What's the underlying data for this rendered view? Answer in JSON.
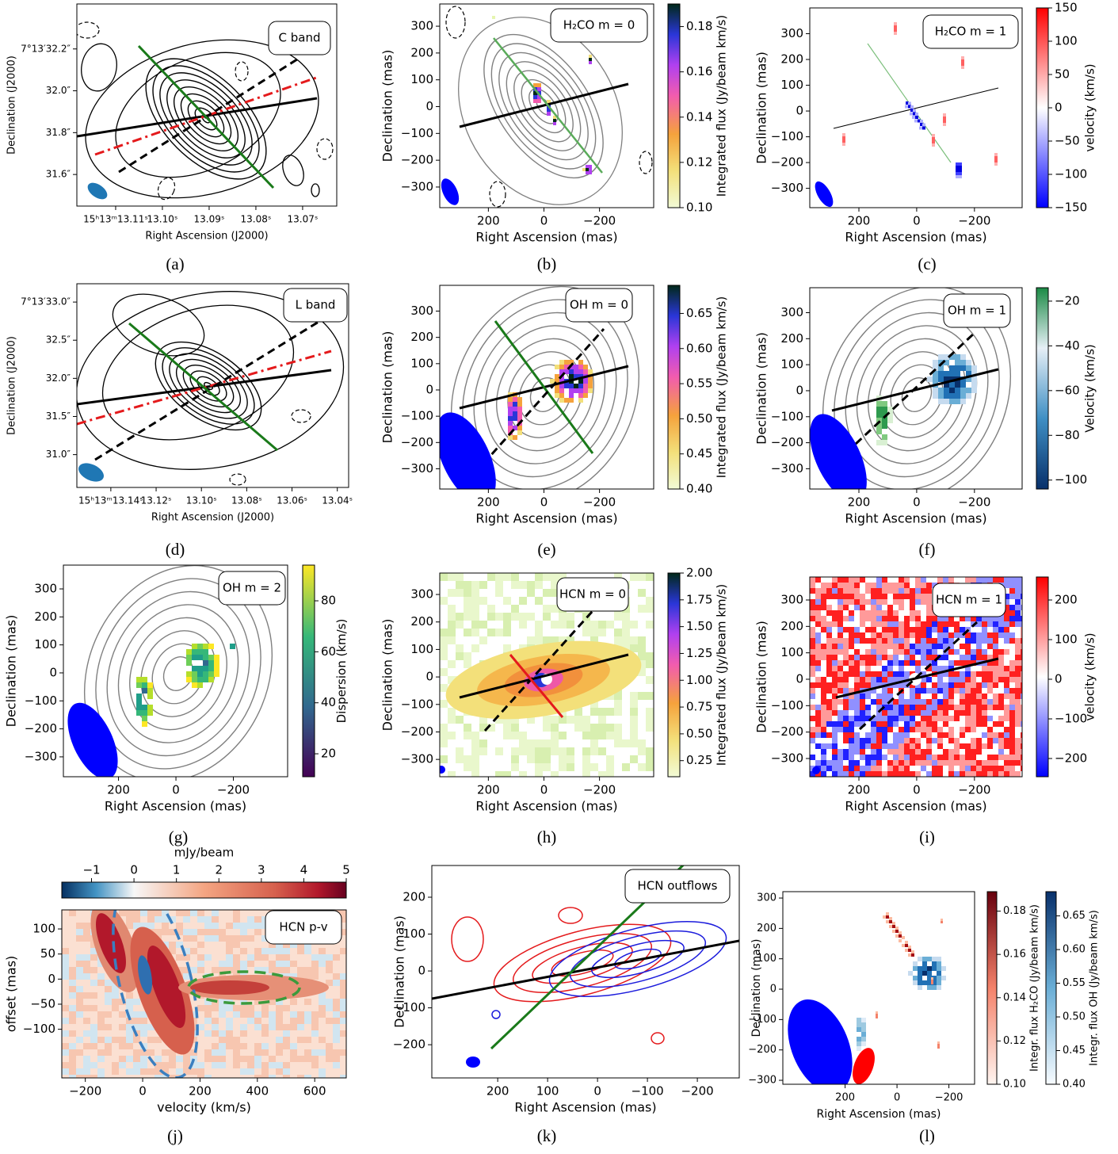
{
  "chart_data": [
    {
      "type": "map",
      "caption": "(a)",
      "annotation": "C band",
      "xlabel": "Right Ascension (J2000)",
      "ylabel": "Declination (J2000)",
      "xlim": [
        13.1183,
        13.0627
      ],
      "ylim": [
        31.449,
        32.415
      ],
      "xticks": [
        {
          "value": 13.11,
          "label": "15ʰ13ᵐ13.11ˢ"
        },
        {
          "value": 13.1,
          "label": "13.10ˢ"
        },
        {
          "value": 13.09,
          "label": "13.09ˢ"
        },
        {
          "value": 13.08,
          "label": "13.08ˢ"
        },
        {
          "value": 13.07,
          "label": "13.07ˢ"
        }
      ],
      "yticks": [
        {
          "value": 31.6,
          "label": "31.6″"
        },
        {
          "value": 31.8,
          "label": "31.8″"
        },
        {
          "value": 32.0,
          "label": "32.0″"
        },
        {
          "value": 32.2,
          "label": "7°13′32.2″"
        }
      ]
    },
    {
      "type": "map",
      "caption": "(b)",
      "annotation": "H₂CO m = 0",
      "xlabel": "Right Ascension (mas)",
      "ylabel": "Declination (mas)",
      "xlim": [
        375,
        -395
      ],
      "ylim": [
        -377,
        383
      ],
      "xticks": [
        200,
        0,
        {
          "value": -200,
          "label": "−200"
        }
      ],
      "yticks": [
        {
          "value": -300,
          "label": "−300"
        },
        {
          "value": -200,
          "label": "−200"
        },
        {
          "value": -100,
          "label": "−100"
        },
        0,
        100,
        200,
        300
      ],
      "colorbars": [
        {
          "label": "Integrated flux (Jy/beam km/s)",
          "cmap": "flux",
          "lim": [
            0.1,
            0.19
          ],
          "ticks": [
            {
              "value": 0.1,
              "label": "0.10"
            },
            0.12,
            0.14,
            0.16,
            0.18
          ]
        }
      ]
    },
    {
      "type": "map",
      "caption": "(c)",
      "annotation": "H₂CO m = 1",
      "xlabel": "Right Ascension (mas)",
      "ylabel": "Declination (mas)",
      "xlim": [
        370,
        -365
      ],
      "ylim": [
        -375,
        400
      ],
      "xticks": [
        200,
        0,
        {
          "value": -200,
          "label": "−200"
        }
      ],
      "yticks": [
        {
          "value": -300,
          "label": "−300"
        },
        {
          "value": -200,
          "label": "−200"
        },
        {
          "value": -100,
          "label": "−100"
        },
        0,
        100,
        200,
        300
      ],
      "colorbars": [
        {
          "label": "velocity (km/s)",
          "cmap": "bwr",
          "lim": [
            -150,
            150
          ],
          "ticks": [
            {
              "value": -150,
              "label": "−150"
            },
            {
              "value": -100,
              "label": "−100"
            },
            {
              "value": -50,
              "label": "−50"
            },
            0,
            50,
            100,
            150
          ]
        }
      ]
    },
    {
      "type": "map",
      "caption": "(d)",
      "annotation": "L band",
      "xlabel": "Right Ascension (J2000)",
      "ylabel": "Declination (J2000)",
      "xlim": [
        13.155,
        13.035
      ],
      "ylim": [
        30.57,
        33.24
      ],
      "xticks": [
        {
          "value": 13.14,
          "label": "15ʰ13ᵐ13.14ˢ"
        },
        {
          "value": 13.12,
          "label": "13.12ˢ"
        },
        {
          "value": 13.1,
          "label": "13.10ˢ"
        },
        {
          "value": 13.08,
          "label": "13.08ˢ"
        },
        {
          "value": 13.06,
          "label": "13.06ˢ"
        },
        {
          "value": 13.04,
          "label": "13.04ˢ"
        }
      ],
      "yticks": [
        {
          "value": 31.0,
          "label": "31.0″"
        },
        {
          "value": 31.5,
          "label": "31.5″"
        },
        {
          "value": 32.0,
          "label": "32.0″"
        },
        {
          "value": 32.5,
          "label": "32.5″"
        },
        {
          "value": 33.0,
          "label": "7°13′33.0″"
        }
      ]
    },
    {
      "type": "map",
      "caption": "(e)",
      "annotation": "OH m = 0",
      "xlabel": "Right Ascension (mas)",
      "ylabel": "Declination (mas)",
      "xlim": [
        375,
        -395
      ],
      "ylim": [
        -377,
        398
      ],
      "xticks": [
        200,
        0,
        {
          "value": -200,
          "label": "−200"
        }
      ],
      "yticks": [
        {
          "value": -300,
          "label": "−300"
        },
        {
          "value": -200,
          "label": "−200"
        },
        {
          "value": -100,
          "label": "−100"
        },
        0,
        100,
        200,
        300
      ],
      "colorbars": [
        {
          "label": "Integrated flux (Jy/beam km/s)",
          "cmap": "flux",
          "lim": [
            0.4,
            0.69
          ],
          "ticks": [
            {
              "value": 0.4,
              "label": "0.40"
            },
            0.45,
            {
              "value": 0.5,
              "label": "0.50"
            },
            0.55,
            {
              "value": 0.6,
              "label": "0.60"
            },
            0.65
          ]
        }
      ]
    },
    {
      "type": "map",
      "caption": "(f)",
      "annotation": "OH m = 1",
      "xlabel": "Right Ascension (mas)",
      "ylabel": "Declination (mas)",
      "xlim": [
        370,
        -365
      ],
      "ylim": [
        -378,
        396
      ],
      "xticks": [
        200,
        0,
        {
          "value": -200,
          "label": "−200"
        }
      ],
      "yticks": [
        {
          "value": -300,
          "label": "−300"
        },
        {
          "value": -200,
          "label": "−200"
        },
        {
          "value": -100,
          "label": "−100"
        },
        0,
        100,
        200,
        300
      ],
      "colorbars": [
        {
          "label": "Velocity (km/s)",
          "cmap": "ocean",
          "lim": [
            -104,
            -14
          ],
          "ticks": [
            {
              "value": -100,
              "label": "−100"
            },
            {
              "value": -80,
              "label": "−80"
            },
            {
              "value": -60,
              "label": "−60"
            },
            {
              "value": -40,
              "label": "−40"
            },
            {
              "value": -20,
              "label": "−20"
            }
          ]
        }
      ]
    },
    {
      "type": "map",
      "caption": "(g)",
      "annotation": "OH m = 2",
      "xlabel": "Right Ascension (mas)",
      "ylabel": "Declination (mas)",
      "xlim": [
        392,
        -389
      ],
      "ylim": [
        -371,
        385
      ],
      "xticks": [
        200,
        0,
        {
          "value": -200,
          "label": "−200"
        }
      ],
      "yticks": [
        {
          "value": -300,
          "label": "−300"
        },
        {
          "value": -200,
          "label": "−200"
        },
        {
          "value": -100,
          "label": "−100"
        },
        0,
        100,
        200,
        300
      ],
      "colorbars": [
        {
          "label": "Dispersion (km/s)",
          "cmap": "viridis",
          "lim": [
            11,
            94
          ],
          "ticks": [
            20,
            40,
            60,
            80
          ]
        }
      ]
    },
    {
      "type": "map",
      "caption": "(h)",
      "annotation": "HCN m = 0",
      "xlabel": "Right Ascension (mas)",
      "ylabel": "Declination (mas)",
      "xlim": [
        375,
        -395
      ],
      "ylim": [
        -363,
        378
      ],
      "xticks": [
        200,
        0,
        {
          "value": -200,
          "label": "−200"
        }
      ],
      "yticks": [
        {
          "value": -300,
          "label": "−300"
        },
        {
          "value": -200,
          "label": "−200"
        },
        {
          "value": -100,
          "label": "−100"
        },
        0,
        100,
        200,
        300
      ],
      "colorbars": [
        {
          "label": "Integrated flux (Jy/beam km/s)",
          "cmap": "flux",
          "lim": [
            0.1,
            2.0
          ],
          "ticks": [
            0.25,
            {
              "value": 0.5,
              "label": "0.50"
            },
            0.75,
            {
              "value": 1.0,
              "label": "1.00"
            },
            1.25,
            {
              "value": 1.5,
              "label": "1.50"
            },
            1.75,
            {
              "value": 2.0,
              "label": "2.00"
            }
          ]
        }
      ]
    },
    {
      "type": "map",
      "caption": "(i)",
      "annotation": "HCN m = 1",
      "xlabel": "Right Ascension (mas)",
      "ylabel": "Declination (mas)",
      "xlim": [
        370,
        -365
      ],
      "ylim": [
        -369,
        387
      ],
      "xticks": [
        200,
        0,
        {
          "value": -200,
          "label": "−200"
        }
      ],
      "yticks": [
        {
          "value": -300,
          "label": "−300"
        },
        {
          "value": -200,
          "label": "−200"
        },
        {
          "value": -100,
          "label": "−100"
        },
        0,
        100,
        200,
        300
      ],
      "colorbars": [
        {
          "label": "velocity (km/s)",
          "cmap": "bwr",
          "lim": [
            -246,
            258
          ],
          "ticks": [
            {
              "value": -200,
              "label": "−200"
            },
            {
              "value": -100,
              "label": "−100"
            },
            0,
            100,
            200
          ]
        }
      ]
    },
    {
      "type": "map",
      "caption": "(j)",
      "annotation": "HCN p-v",
      "xlabel": "velocity (km/s)",
      "ylabel": "offset (mas)",
      "xlim": [
        -282,
        710
      ],
      "ylim": [
        -197,
        138
      ],
      "xticks": [
        {
          "value": -200,
          "label": "−200"
        },
        0,
        200,
        400,
        600
      ],
      "yticks": [
        {
          "value": -100,
          "label": "−100"
        },
        {
          "value": -50,
          "label": "−50"
        },
        0,
        50,
        100
      ],
      "colorbars": [
        {
          "label": "mJy/beam",
          "cmap": "rdbu",
          "lim": [
            -1.7,
            5
          ],
          "ticks": [
            {
              "value": -1,
              "label": "−1"
            },
            0,
            1,
            2,
            3,
            4,
            5
          ]
        }
      ]
    },
    {
      "type": "map",
      "caption": "(k)",
      "annotation": "HCN outflows",
      "xlabel": "Right Ascension (mas)",
      "ylabel": "Declination (mas)",
      "xlim": [
        332,
        -284
      ],
      "ylim": [
        -290,
        286
      ],
      "xticks": [
        200,
        100,
        0,
        {
          "value": -100,
          "label": "−100"
        },
        {
          "value": -200,
          "label": "−200"
        }
      ],
      "yticks": [
        {
          "value": -200,
          "label": "−200"
        },
        {
          "value": -100,
          "label": "−100"
        },
        0,
        100,
        200
      ]
    },
    {
      "type": "map",
      "caption": "(l)",
      "xlabel": "Right Ascension (mas)",
      "ylabel": "Declination (mas)",
      "xlim": [
        440,
        -299
      ],
      "ylim": [
        -313,
        321
      ],
      "xticks": [
        200,
        0,
        {
          "value": -200,
          "label": "−200"
        }
      ],
      "yticks": [
        {
          "value": -300,
          "label": "−300"
        },
        {
          "value": -200,
          "label": "−200"
        },
        {
          "value": -100,
          "label": "−100"
        },
        0,
        100,
        200,
        300
      ],
      "colorbars": [
        {
          "label": "Integr. flux H₂CO (Jy/beam km/s)",
          "cmap": "reds",
          "lim": [
            0.1,
            0.189
          ],
          "ticks": [
            {
              "value": 0.1,
              "label": "0.10"
            },
            0.12,
            0.14,
            0.16,
            0.18
          ]
        },
        {
          "label": "Integr. flux OH (Jy/beam km/s)",
          "cmap": "blues",
          "lim": [
            0.4,
            0.686
          ],
          "ticks": [
            {
              "value": 0.4,
              "label": "0.40"
            },
            0.45,
            {
              "value": 0.5,
              "label": "0.50"
            },
            0.55,
            {
              "value": 0.6,
              "label": "0.60"
            },
            0.65
          ]
        }
      ]
    }
  ]
}
